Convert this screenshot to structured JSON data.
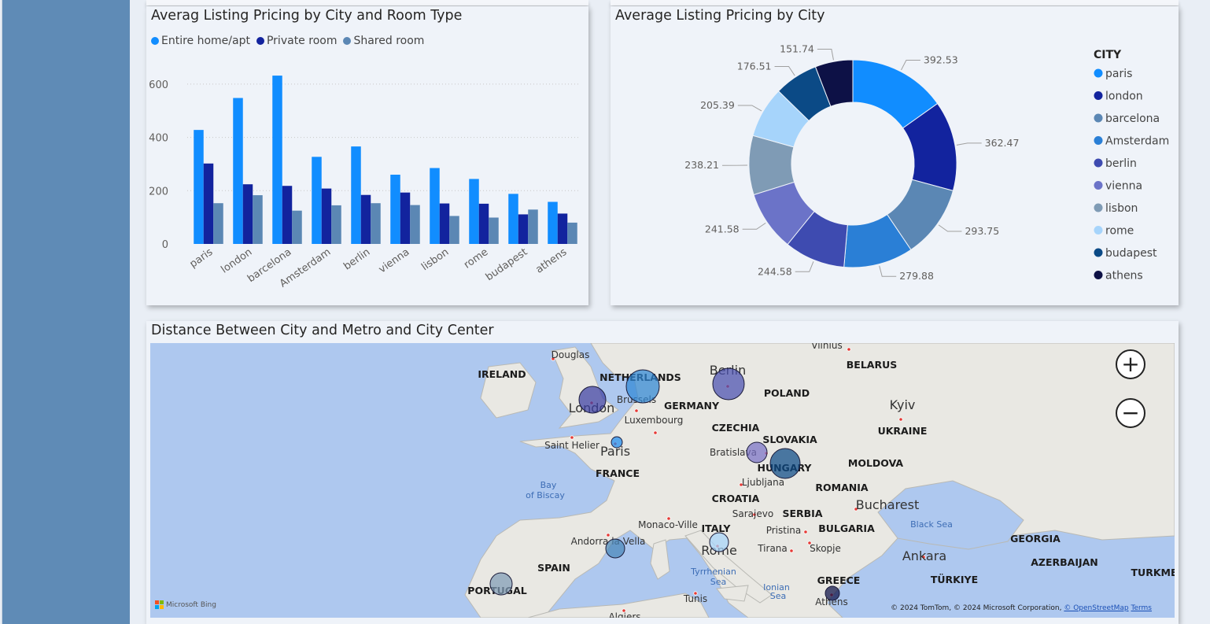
{
  "bar_panel": {
    "title": "Averag Listing Pricing by City and Room Type"
  },
  "donut_panel": {
    "title": "Average Listing Pricing by City",
    "legend_title": "CITY"
  },
  "map_panel": {
    "title": "Distance Between City and Metro and City Center",
    "zoom_in": "+",
    "zoom_out": "−",
    "attribution": "Microsoft Bing",
    "copyright_text": "© 2024 TomTom, © 2024 Microsoft Corporation,",
    "copyright_link": "© OpenStreetMap",
    "terms": "Terms",
    "labels": {
      "countries": [
        "IRELAND",
        "NETHERLANDS",
        "GERMANY",
        "POLAND",
        "BELARUS",
        "UKRAINE",
        "CZECHIA",
        "SLOVAKIA",
        "HUNGARY",
        "MOLDOVA",
        "ROMANIA",
        "FRANCE",
        "CROATIA",
        "SERBIA",
        "BULGARIA",
        "ITALY",
        "SPAIN",
        "PORTUGAL",
        "GREECE",
        "TÜRKIYE",
        "GEORGIA",
        "AZERBAIJAN",
        "TURKME"
      ],
      "cities": [
        "Vilnius",
        "Douglas",
        "Berlin",
        "London",
        "Brussels",
        "Kyiv",
        "Luxembourg",
        "Saint Helier",
        "Paris",
        "Bratislava",
        "Ljubljana",
        "Bucharest",
        "Sarajevo",
        "Monaco-Ville",
        "Pristina",
        "Andorra la Vella",
        "Tirana",
        "Skopje",
        "Rome",
        "Ankara",
        "Tunis",
        "Athens",
        "Algiers"
      ],
      "water": [
        "Bay",
        "of Biscay",
        "Black Sea",
        "Tyrrhenian",
        "Sea",
        "Ionian",
        "Sea"
      ]
    },
    "bubbles": [
      {
        "city": "London",
        "color": "#3b3fa3"
      },
      {
        "city": "Amsterdam",
        "color": "#2f86d4"
      },
      {
        "city": "Berlin",
        "color": "#4a4fb0"
      },
      {
        "city": "Paris",
        "color": "#1e8cf0"
      },
      {
        "city": "Vienna",
        "color": "#7a72c6"
      },
      {
        "city": "Budapest",
        "color": "#0b4a86"
      },
      {
        "city": "Rome",
        "color": "#a6d4fb"
      },
      {
        "city": "Barcelona",
        "color": "#4a86b8"
      },
      {
        "city": "Lisbon",
        "color": "#7f9bb5"
      },
      {
        "city": "Athens",
        "color": "#0d1146"
      }
    ]
  },
  "chart_data": [
    {
      "type": "bar",
      "title": "Averag Listing Pricing by City and Room Type",
      "categories": [
        "paris",
        "london",
        "barcelona",
        "Amsterdam",
        "berlin",
        "vienna",
        "lisbon",
        "rome",
        "budapest",
        "athens"
      ],
      "series": [
        {
          "name": "Entire home/apt",
          "color": "#118dff",
          "values": [
            428,
            548,
            632,
            327,
            366,
            260,
            285,
            244,
            188,
            158
          ]
        },
        {
          "name": "Private room",
          "color": "#12239e",
          "values": [
            302,
            224,
            218,
            208,
            184,
            193,
            152,
            151,
            111,
            114
          ]
        },
        {
          "name": "Shared room",
          "color": "#5b87b4",
          "values": [
            153,
            183,
            125,
            145,
            153,
            146,
            105,
            99,
            129,
            80
          ]
        }
      ],
      "y_ticks": [
        "0",
        "200",
        "400",
        "600"
      ],
      "ylim": [
        0,
        650
      ],
      "grid": true,
      "legend_position": "top-left"
    },
    {
      "type": "pie",
      "title": "Average Listing Pricing by City",
      "legend_title": "CITY",
      "legend_position": "right",
      "donut": true,
      "slices": [
        {
          "label": "paris",
          "value": 392.53,
          "display": "392.53",
          "color": "#118dff"
        },
        {
          "label": "london",
          "value": 362.47,
          "display": "362.47",
          "color": "#12239e"
        },
        {
          "label": "barcelona",
          "value": 293.75,
          "display": "293.75",
          "color": "#5b87b4"
        },
        {
          "label": "Amsterdam",
          "value": 279.88,
          "display": "279.88",
          "color": "#2a7fd6"
        },
        {
          "label": "berlin",
          "value": 244.58,
          "display": "244.58",
          "color": "#3e4bb0"
        },
        {
          "label": "vienna",
          "value": 241.58,
          "display": "241.58",
          "color": "#6b73c8"
        },
        {
          "label": "lisbon",
          "value": 238.21,
          "display": "238.21",
          "color": "#7f9bb5"
        },
        {
          "label": "rome",
          "value": 205.39,
          "display": "205.39",
          "color": "#a6d4fb"
        },
        {
          "label": "budapest",
          "value": 176.51,
          "display": "176.51",
          "color": "#0b4a86"
        },
        {
          "label": "athens",
          "value": 151.74,
          "display": "151.74",
          "color": "#0d1146"
        }
      ]
    }
  ]
}
